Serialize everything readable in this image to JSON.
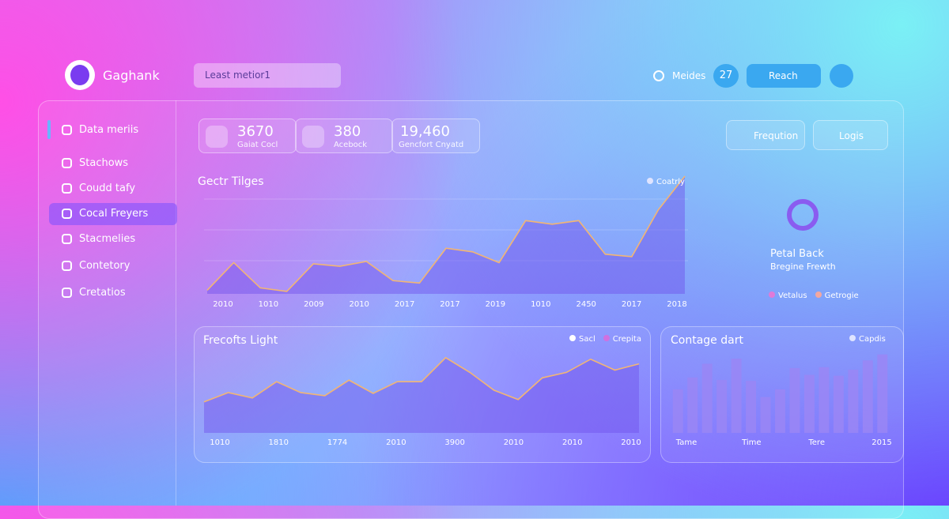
{
  "header": {
    "brand": "Gaghank",
    "search": "Least metior1",
    "status": "Meides",
    "badge": "27",
    "reach": "Reach"
  },
  "sidebar": {
    "items": [
      "Data meriis",
      "Stachows",
      "Coudd tafy",
      "Cocal Freyers",
      "Stacmelies",
      "Contetory",
      "Cretatios"
    ],
    "active": 3
  },
  "stats": [
    {
      "value": "3670",
      "label": "Gaiat Cocl"
    },
    {
      "value": "380",
      "label": "Acebock"
    },
    {
      "value": "19,460",
      "label": "Gencfort Cnyatd"
    }
  ],
  "actions": [
    "Freqution",
    "Logis"
  ],
  "donut": {
    "title": "Petal Back",
    "subtitle": "Bregine Frewth",
    "legend": [
      {
        "name": "Vetalus",
        "color": "#e07ad8"
      },
      {
        "name": "Getrogie",
        "color": "#f3a7a0"
      }
    ]
  },
  "charts": [
    {
      "type": "line",
      "title": "Gectr Tilges",
      "legend": [
        {
          "name": "Coatrly",
          "color": "#dfe4ff"
        }
      ],
      "x_labels": [
        "2010",
        "1010",
        "2009",
        "2010",
        "2017",
        "2017",
        "2019",
        "1010",
        "2450",
        "2017",
        "2018"
      ],
      "values": [
        3,
        26,
        5,
        2,
        25,
        23,
        27,
        11,
        9,
        38,
        35,
        26,
        61,
        58,
        61,
        33,
        31,
        70,
        98
      ],
      "ylim": [
        0,
        100
      ],
      "color": "#f2b574"
    },
    {
      "type": "line",
      "title": "Frecofts Light",
      "legend": [
        {
          "name": "Sacl",
          "color": "#ffffff"
        },
        {
          "name": "Crepita",
          "color": "#d070e0"
        }
      ],
      "x_labels": [
        "1010",
        "1810",
        "1774",
        "2010",
        "3900",
        "2010",
        "2010",
        "2010"
      ],
      "values": [
        40,
        52,
        45,
        66,
        52,
        48,
        68,
        51,
        66,
        66,
        97,
        78,
        55,
        43,
        71,
        78,
        95,
        81,
        89
      ],
      "ylim": [
        0,
        110
      ],
      "color": "#f2b574"
    },
    {
      "type": "bar",
      "title": "Contage dart",
      "legend": [
        {
          "name": "Capdis",
          "color": "#dfe4ff"
        }
      ],
      "x_labels": [
        "Tame",
        "Time",
        "Tere",
        "2015"
      ],
      "values": [
        51,
        65,
        81,
        62,
        87,
        61,
        42,
        51,
        76,
        68,
        77,
        67,
        74,
        85,
        92
      ],
      "ylim": [
        0,
        100
      ],
      "color": "#9a86f5"
    }
  ]
}
